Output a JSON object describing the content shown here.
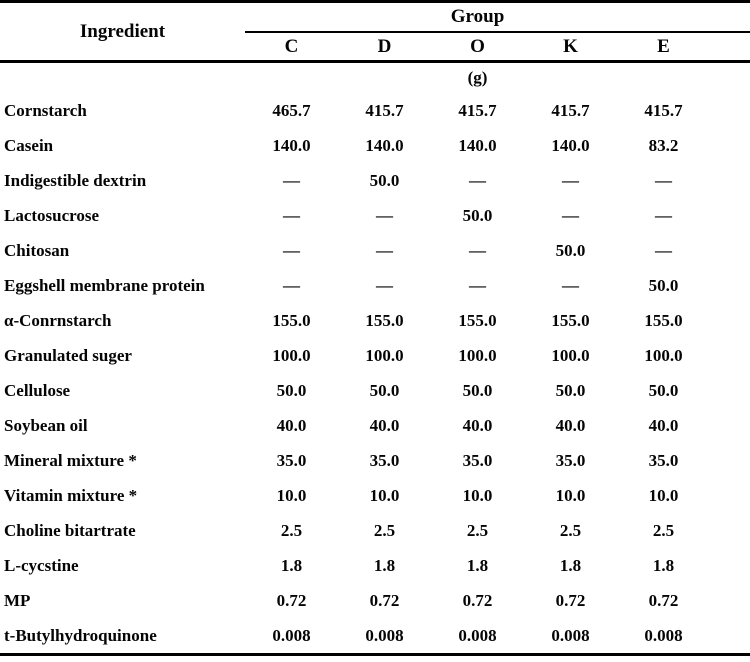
{
  "table": {
    "ingredient_header": "Ingredient",
    "group_header": "Group",
    "unit_label": "(g)",
    "columns": [
      "C",
      "D",
      "O",
      "K",
      "E"
    ],
    "rows": [
      {
        "ingredient": "Cornstarch",
        "values": [
          "465.7",
          "415.7",
          "415.7",
          "415.7",
          "415.7"
        ]
      },
      {
        "ingredient": "Casein",
        "values": [
          "140.0",
          "140.0",
          "140.0",
          "140.0",
          "83.2"
        ]
      },
      {
        "ingredient": "Indigestible dextrin",
        "values": [
          "—",
          "50.0",
          "—",
          "—",
          "—"
        ]
      },
      {
        "ingredient": "Lactosucrose",
        "values": [
          "—",
          "—",
          "50.0",
          "—",
          "—"
        ]
      },
      {
        "ingredient": "Chitosan",
        "values": [
          "—",
          "—",
          "—",
          "50.0",
          "—"
        ]
      },
      {
        "ingredient": "Eggshell membrane protein",
        "values": [
          "—",
          "—",
          "—",
          "—",
          "50.0"
        ]
      },
      {
        "ingredient": "α-Conrnstarch",
        "values": [
          "155.0",
          "155.0",
          "155.0",
          "155.0",
          "155.0"
        ]
      },
      {
        "ingredient": "Granulated suger",
        "values": [
          "100.0",
          "100.0",
          "100.0",
          "100.0",
          "100.0"
        ]
      },
      {
        "ingredient": "Cellulose",
        "values": [
          "50.0",
          "50.0",
          "50.0",
          "50.0",
          "50.0"
        ]
      },
      {
        "ingredient": "Soybean oil",
        "values": [
          "40.0",
          "40.0",
          "40.0",
          "40.0",
          "40.0"
        ]
      },
      {
        "ingredient": "Mineral mixture *",
        "values": [
          "35.0",
          "35.0",
          "35.0",
          "35.0",
          "35.0"
        ]
      },
      {
        "ingredient": "Vitamin mixture *",
        "values": [
          "10.0",
          "10.0",
          "10.0",
          "10.0",
          "10.0"
        ]
      },
      {
        "ingredient": "Choline bitartrate",
        "values": [
          "2.5",
          "2.5",
          "2.5",
          "2.5",
          "2.5"
        ]
      },
      {
        "ingredient": "L-cycstine",
        "values": [
          "1.8",
          "1.8",
          "1.8",
          "1.8",
          "1.8"
        ]
      },
      {
        "ingredient": "MP",
        "values": [
          "0.72",
          "0.72",
          "0.72",
          "0.72",
          "0.72"
        ]
      },
      {
        "ingredient": "t-Butylhydroquinone",
        "values": [
          "0.008",
          "0.008",
          "0.008",
          "0.008",
          "0.008"
        ]
      }
    ],
    "text_color": "#050505",
    "rule_color": "#000000"
  }
}
